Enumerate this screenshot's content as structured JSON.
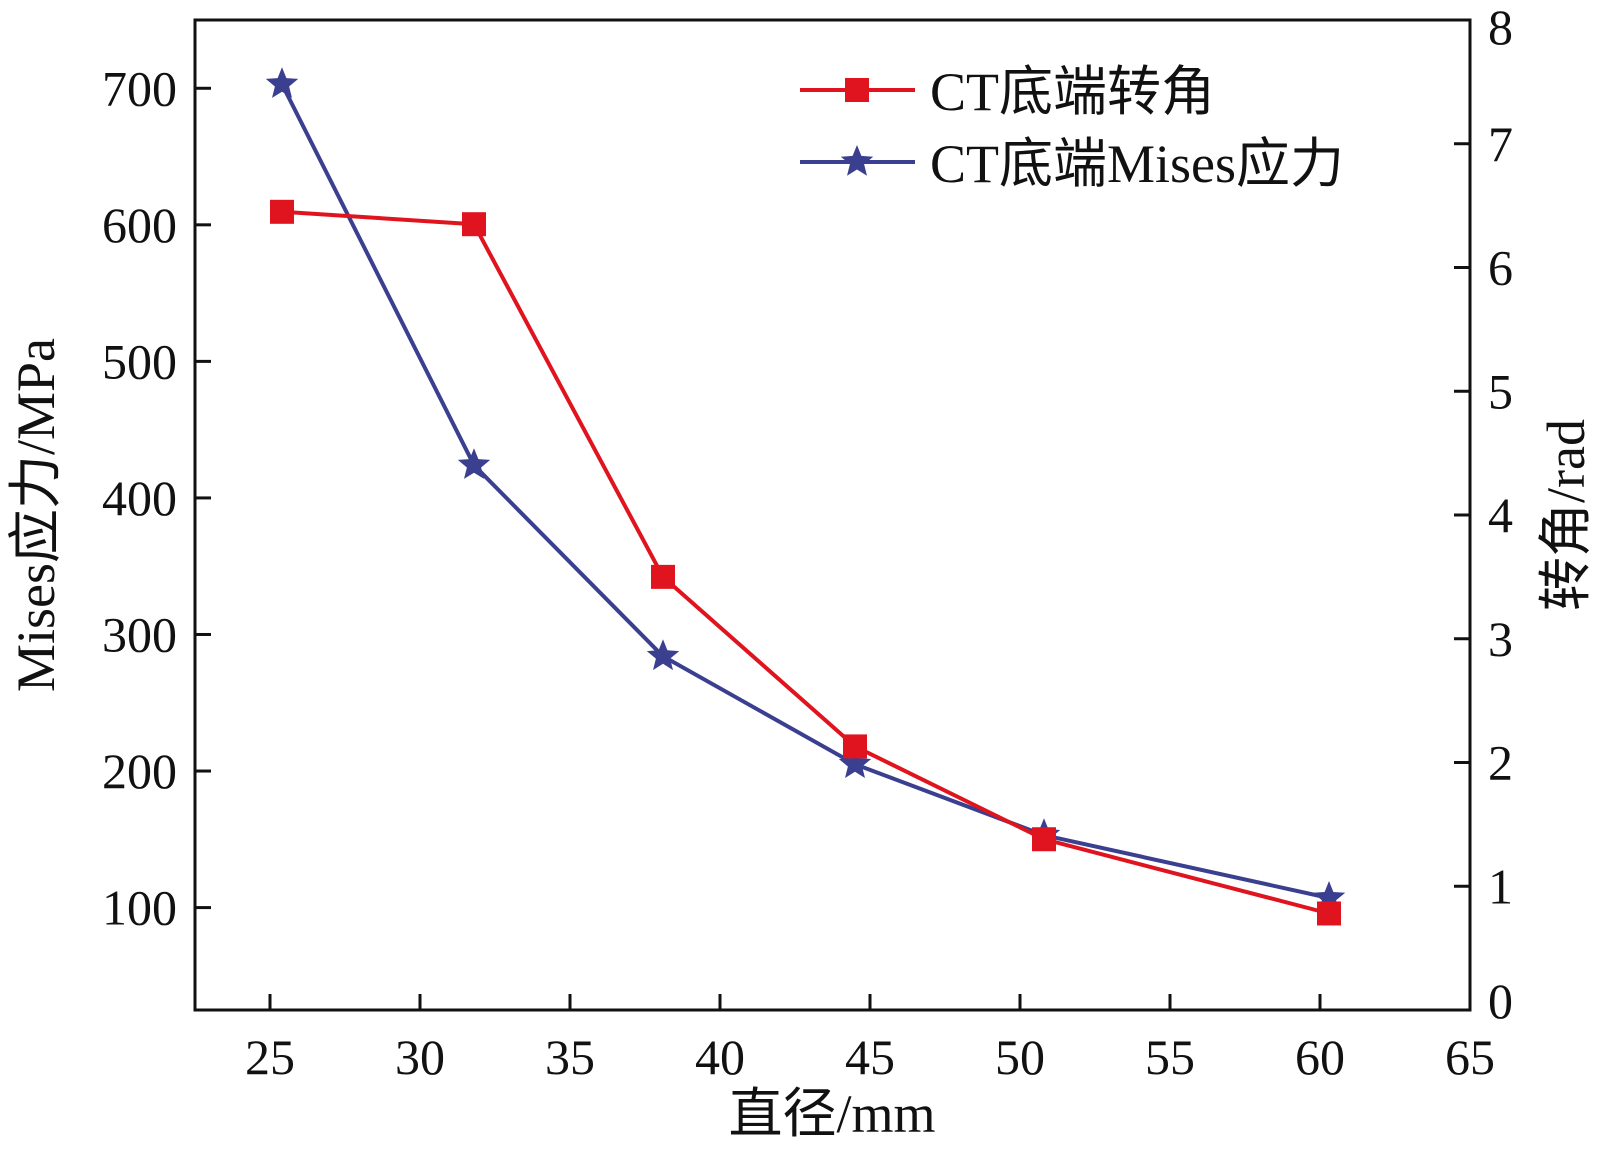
{
  "chart_data": {
    "type": "line",
    "title": "",
    "xlabel": "直径/mm",
    "ylabel_left": "Mises应力/MPa",
    "ylabel_right": "转角/rad",
    "xlim": [
      22.5,
      65
    ],
    "ylim_left": [
      25,
      750
    ],
    "ylim_right": [
      0,
      8
    ],
    "x_ticks": [
      25,
      30,
      35,
      40,
      45,
      50,
      55,
      60,
      65
    ],
    "y_left_ticks": [
      100,
      200,
      300,
      400,
      500,
      600,
      700
    ],
    "y_right_ticks": [
      0,
      1,
      2,
      3,
      4,
      5,
      6,
      7,
      8
    ],
    "grid": false,
    "legend_position": "top-right",
    "series": [
      {
        "name": "CT底端转角",
        "axis": "right",
        "color": "#e0141f",
        "marker": "square",
        "x": [
          25.4,
          31.8,
          38.1,
          44.5,
          50.8,
          60.3
        ],
        "values": [
          6.45,
          6.35,
          3.5,
          2.13,
          1.38,
          0.78
        ]
      },
      {
        "name": "CT底端Mises应力",
        "axis": "left",
        "color": "#3a3f8f",
        "marker": "star",
        "x": [
          25.4,
          31.8,
          38.1,
          44.5,
          50.8,
          60.3
        ],
        "values": [
          703,
          424,
          284,
          205,
          153,
          107
        ]
      }
    ]
  }
}
